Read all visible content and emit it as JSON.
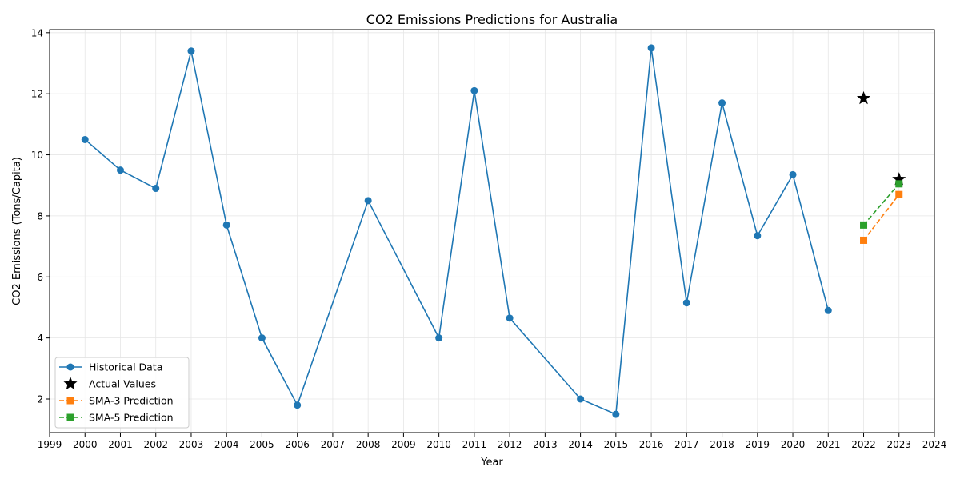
{
  "chart_data": {
    "type": "line",
    "title": "CO2 Emissions Predictions for Australia",
    "xlabel": "Year",
    "ylabel": "CO2 Emissions (Tons/Capita)",
    "xlim": [
      1999,
      2024
    ],
    "ylim": [
      0.9,
      14.1
    ],
    "x_ticks": [
      1999,
      2000,
      2001,
      2002,
      2003,
      2004,
      2005,
      2006,
      2007,
      2008,
      2009,
      2010,
      2011,
      2012,
      2013,
      2014,
      2015,
      2016,
      2017,
      2018,
      2019,
      2020,
      2021,
      2022,
      2023,
      2024
    ],
    "y_ticks": [
      2,
      4,
      6,
      8,
      10,
      12,
      14
    ],
    "grid": true,
    "legend_position": "lower-left",
    "series": [
      {
        "name": "Historical Data",
        "kind": "line-circle",
        "color": "#1f77b4",
        "x": [
          2000,
          2001,
          2002,
          2003,
          2004,
          2005,
          2006,
          2008,
          2010,
          2011,
          2012,
          2014,
          2015,
          2016,
          2017,
          2018,
          2019,
          2020,
          2021
        ],
        "y": [
          10.5,
          9.5,
          8.9,
          13.4,
          7.7,
          4.0,
          1.8,
          8.5,
          4.0,
          12.1,
          4.65,
          2.0,
          1.5,
          13.5,
          5.15,
          11.7,
          7.35,
          9.35,
          4.9
        ]
      },
      {
        "name": "Actual Values",
        "kind": "star",
        "color": "#000000",
        "x": [
          2022,
          2023
        ],
        "y": [
          11.85,
          9.2
        ]
      },
      {
        "name": "SMA-3 Prediction",
        "kind": "dashed-square",
        "color": "#ff7f0e",
        "x": [
          2022,
          2023
        ],
        "y": [
          7.2,
          8.7
        ]
      },
      {
        "name": "SMA-5 Prediction",
        "kind": "dashed-square",
        "color": "#2ca02c",
        "x": [
          2022,
          2023
        ],
        "y": [
          7.7,
          9.05
        ]
      }
    ]
  }
}
